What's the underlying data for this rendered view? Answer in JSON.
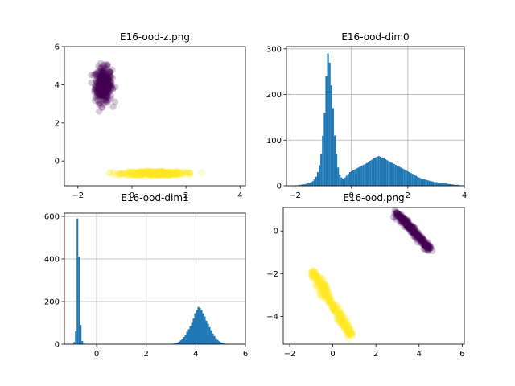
{
  "colors": {
    "cluster_a": "#440154",
    "cluster_b": "#fde725",
    "hist": "#1f77b4",
    "grid": "#b0b0b0",
    "axis": "#000000"
  },
  "chart_data": [
    {
      "id": "p1",
      "type": "scatter",
      "title": "E16-ood-z.png",
      "xlim": [
        -2.5,
        4.2
      ],
      "ylim": [
        -1.3,
        6.0
      ],
      "xticks": [
        -2,
        0,
        2,
        4
      ],
      "xtick_labels": [
        "−2",
        "0",
        "2",
        "4"
      ],
      "yticks": [
        0,
        2,
        4,
        6
      ],
      "ytick_labels": [
        "0",
        "2",
        "4",
        "6"
      ],
      "grid": false,
      "clusters": [
        {
          "color": "cluster_a",
          "center": [
            -1.05,
            4.0
          ],
          "spread": [
            0.35,
            1.0
          ],
          "count": 350,
          "clip_x": [
            -1.5,
            -0.5
          ],
          "clip_y": [
            2.6,
            5.7
          ]
        },
        {
          "color": "cluster_b",
          "center": [
            0.8,
            -0.65
          ],
          "spread": [
            1.25,
            0.12
          ],
          "count": 450,
          "clip_x": [
            -2.3,
            4.0
          ],
          "clip_y": [
            -1.0,
            -0.35
          ]
        }
      ]
    },
    {
      "id": "p2",
      "type": "bar",
      "title": "E16-ood-dim0",
      "xlim": [
        -2.3,
        4.0
      ],
      "ylim": [
        0,
        305
      ],
      "xticks": [
        -2,
        0,
        2,
        4
      ],
      "xtick_labels": [
        "−2",
        "0",
        "2",
        "4"
      ],
      "yticks": [
        0,
        100,
        200,
        300
      ],
      "ytick_labels": [
        "0",
        "100",
        "200",
        "300"
      ],
      "grid": true,
      "bin_start": -2.0,
      "bin_width": 0.06,
      "values": [
        1,
        1,
        2,
        2,
        3,
        3,
        4,
        5,
        6,
        8,
        10,
        14,
        20,
        30,
        45,
        70,
        110,
        160,
        240,
        290,
        270,
        220,
        170,
        110,
        70,
        40,
        25,
        18,
        15,
        18,
        22,
        26,
        30,
        32,
        34,
        36,
        38,
        40,
        42,
        44,
        46,
        48,
        50,
        52,
        55,
        57,
        60,
        62,
        64,
        65,
        64,
        62,
        60,
        58,
        56,
        54,
        52,
        50,
        48,
        46,
        44,
        42,
        40,
        38,
        36,
        34,
        32,
        30,
        28,
        26,
        24,
        22,
        20,
        18,
        16,
        15,
        14,
        13,
        12,
        11,
        10,
        9,
        8,
        8,
        7,
        7,
        6,
        6,
        5,
        5,
        4,
        4,
        3,
        3,
        2,
        2,
        2,
        1,
        1,
        1
      ]
    },
    {
      "id": "p3",
      "type": "bar",
      "title": "E16-ood-dim1",
      "xlim": [
        -1.3,
        6.0
      ],
      "ylim": [
        0,
        615
      ],
      "xticks": [
        0,
        2,
        4,
        6
      ],
      "xtick_labels": [
        "0",
        "2",
        "4",
        "6"
      ],
      "yticks": [
        0,
        200,
        400,
        600
      ],
      "ytick_labels": [
        "0",
        "200",
        "400",
        "600"
      ],
      "grid": true,
      "bin_start": -1.0,
      "bin_width": 0.065,
      "values": [
        2,
        10,
        60,
        590,
        410,
        90,
        15,
        3,
        1,
        0,
        0,
        0,
        0,
        0,
        0,
        0,
        0,
        0,
        0,
        0,
        0,
        0,
        0,
        0,
        0,
        0,
        0,
        0,
        0,
        0,
        0,
        0,
        0,
        0,
        0,
        0,
        0,
        0,
        0,
        0,
        0,
        0,
        0,
        0,
        0,
        0,
        0,
        0,
        0,
        0,
        0,
        0,
        0,
        0,
        0,
        0,
        0,
        0,
        0,
        0,
        0,
        1,
        2,
        3,
        5,
        8,
        12,
        18,
        25,
        34,
        45,
        58,
        70,
        85,
        100,
        120,
        145,
        160,
        175,
        170,
        160,
        145,
        130,
        110,
        95,
        80,
        65,
        50,
        38,
        28,
        20,
        14,
        9,
        6,
        4,
        2,
        1
      ]
    },
    {
      "id": "p4",
      "type": "scatter",
      "title": "E16-ood.png",
      "xlim": [
        -2.3,
        6.1
      ],
      "ylim": [
        -5.3,
        1.1
      ],
      "xticks": [
        -2,
        0,
        2,
        4,
        6
      ],
      "xtick_labels": [
        "−2",
        "0",
        "2",
        "4",
        "6"
      ],
      "yticks": [
        -4,
        -2,
        0
      ],
      "ytick_labels": [
        "−4",
        "−2",
        "0"
      ],
      "grid": false,
      "lines": [
        {
          "color": "cluster_a",
          "from": [
            2.95,
            0.85
          ],
          "to": [
            4.5,
            -0.85
          ],
          "count": 260,
          "jitter": 0.12
        },
        {
          "color": "cluster_b",
          "from": [
            -0.95,
            -1.9
          ],
          "to": [
            0.85,
            -4.9
          ],
          "count": 320,
          "jitter": 0.15
        }
      ]
    }
  ]
}
